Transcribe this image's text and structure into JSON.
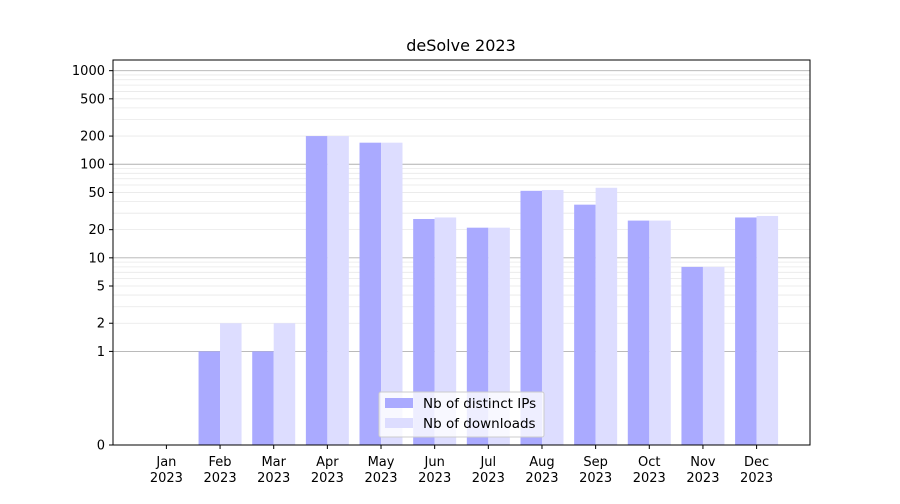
{
  "chart_data": {
    "type": "bar",
    "title": "deSolve 2023",
    "xlabel": "",
    "ylabel": "",
    "y_scale": "symlog",
    "ylim": [
      0,
      1300
    ],
    "y_ticks": [
      0,
      1,
      2,
      5,
      10,
      20,
      50,
      100,
      200,
      500,
      1000
    ],
    "y_tick_labels": [
      "0",
      "1",
      "2",
      "5",
      "10",
      "20",
      "50",
      "100",
      "200",
      "500",
      "1000"
    ],
    "grid": "horizontal",
    "legend_position": "bottom-center",
    "categories": [
      "Jan\n2023",
      "Feb\n2023",
      "Mar\n2023",
      "Apr\n2023",
      "May\n2023",
      "Jun\n2023",
      "Jul\n2023",
      "Aug\n2023",
      "Sep\n2023",
      "Oct\n2023",
      "Nov\n2023",
      "Dec\n2023"
    ],
    "category_labels": [
      [
        "Jan",
        "2023"
      ],
      [
        "Feb",
        "2023"
      ],
      [
        "Mar",
        "2023"
      ],
      [
        "Apr",
        "2023"
      ],
      [
        "May",
        "2023"
      ],
      [
        "Jun",
        "2023"
      ],
      [
        "Jul",
        "2023"
      ],
      [
        "Aug",
        "2023"
      ],
      [
        "Sep",
        "2023"
      ],
      [
        "Oct",
        "2023"
      ],
      [
        "Nov",
        "2023"
      ],
      [
        "Dec",
        "2023"
      ]
    ],
    "series": [
      {
        "name": "Nb of distinct IPs",
        "color": "#aaaaff",
        "values": [
          0,
          1,
          1,
          200,
          170,
          26,
          21,
          52,
          37,
          25,
          8,
          27
        ]
      },
      {
        "name": "Nb of downloads",
        "color": "#ddddff",
        "values": [
          0,
          2,
          2,
          200,
          170,
          27,
          21,
          53,
          56,
          25,
          8,
          28
        ]
      }
    ]
  }
}
